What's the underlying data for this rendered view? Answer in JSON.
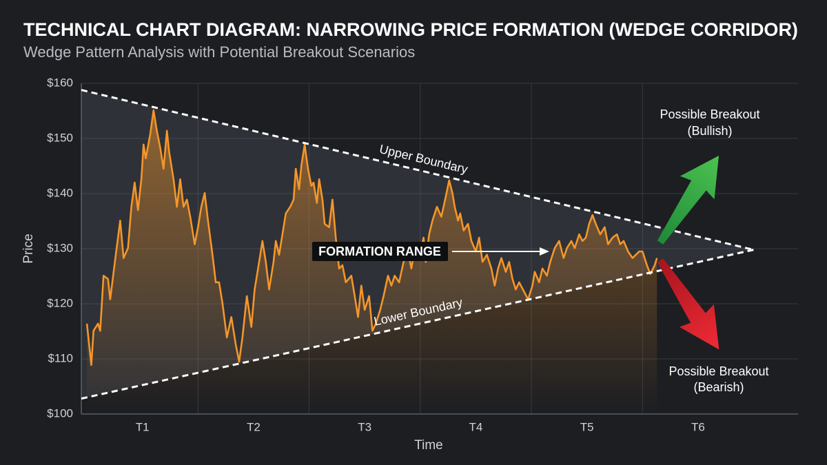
{
  "chart_data": {
    "type": "line",
    "title": "TECHNICAL CHART DIAGRAM: NARROWING PRICE FORMATION (WEDGE CORRIDOR)",
    "subtitle": "Wedge Pattern Analysis with Potential Breakout Scenarios",
    "x_label": "Time",
    "y_label": "Price",
    "xlim": [
      -0.05,
      6.4
    ],
    "ylim": [
      100,
      160
    ],
    "xticks": [
      {
        "value": 0.5,
        "label": "T1"
      },
      {
        "value": 1.5,
        "label": "T2"
      },
      {
        "value": 2.5,
        "label": "T3"
      },
      {
        "value": 3.5,
        "label": "T4"
      },
      {
        "value": 4.5,
        "label": "T5"
      },
      {
        "value": 5.5,
        "label": "T6"
      }
    ],
    "x_gridlines": [
      1,
      2,
      3,
      4,
      5
    ],
    "yticks": [
      {
        "value": 100,
        "label": "$100"
      },
      {
        "value": 110,
        "label": "$110"
      },
      {
        "value": 120,
        "label": "$120"
      },
      {
        "value": 130,
        "label": "$130"
      },
      {
        "value": 140,
        "label": "$140"
      },
      {
        "value": 150,
        "label": "$150"
      },
      {
        "value": 160,
        "label": "$160"
      }
    ],
    "grid": true,
    "series": [
      {
        "color": "#f5962a",
        "x": [
          0.0,
          0.04,
          0.06,
          0.1,
          0.12,
          0.15,
          0.19,
          0.21,
          0.26,
          0.3,
          0.33,
          0.37,
          0.4,
          0.43,
          0.46,
          0.49,
          0.51,
          0.53,
          0.57,
          0.6,
          0.63,
          0.66,
          0.69,
          0.72,
          0.74,
          0.78,
          0.81,
          0.84,
          0.87,
          0.9,
          0.93,
          0.97,
          1.0,
          1.03,
          1.06,
          1.09,
          1.13,
          1.16,
          1.19,
          1.22,
          1.26,
          1.3,
          1.34,
          1.37,
          1.4,
          1.44,
          1.48,
          1.51,
          1.55,
          1.58,
          1.61,
          1.64,
          1.68,
          1.7,
          1.73,
          1.76,
          1.79,
          1.83,
          1.86,
          1.88,
          1.91,
          1.93,
          1.96,
          1.99,
          2.02,
          2.04,
          2.07,
          2.09,
          2.12,
          2.14,
          2.18,
          2.21,
          2.24,
          2.27,
          2.3,
          2.33,
          2.38,
          2.41,
          2.44,
          2.47,
          2.5,
          2.54,
          2.57,
          2.6,
          2.64,
          2.67,
          2.71,
          2.74,
          2.77,
          2.81,
          2.85,
          2.89,
          2.92,
          2.95,
          2.99,
          3.03,
          3.05,
          3.08,
          3.11,
          3.15,
          3.19,
          3.23,
          3.26,
          3.29,
          3.31,
          3.34,
          3.36,
          3.39,
          3.43,
          3.46,
          3.5,
          3.53,
          3.56,
          3.6,
          3.64,
          3.67,
          3.7,
          3.73,
          3.77,
          3.8,
          3.83,
          3.86,
          3.89,
          3.94,
          3.97,
          4.01,
          4.03,
          4.07,
          4.1,
          4.14,
          4.17,
          4.21,
          4.25,
          4.29,
          4.32,
          4.36,
          4.39,
          4.43,
          4.46,
          4.49,
          4.52,
          4.55,
          4.58,
          4.62,
          4.66,
          4.69,
          4.73,
          4.77,
          4.8,
          4.83,
          4.87,
          4.91,
          4.94,
          4.97,
          5.0,
          5.04,
          5.07,
          5.11,
          5.13
        ],
        "values": [
          116.4,
          108.9,
          115.1,
          116.4,
          115.1,
          125.1,
          124.5,
          120.8,
          128.9,
          135.1,
          128.3,
          130.1,
          137.6,
          142.0,
          137.0,
          142.6,
          148.9,
          146.4,
          150.8,
          155.1,
          151.4,
          148.3,
          144.5,
          151.4,
          147.6,
          142.6,
          137.6,
          142.6,
          137.6,
          138.9,
          135.8,
          130.8,
          133.9,
          137.6,
          140.1,
          135.1,
          128.9,
          123.9,
          123.9,
          120.1,
          113.9,
          117.6,
          112.6,
          109.5,
          113.9,
          121.4,
          115.8,
          122.6,
          127.6,
          131.4,
          127.6,
          122.6,
          127.6,
          131.4,
          128.9,
          132.6,
          136.4,
          137.6,
          138.9,
          144.5,
          140.8,
          145.1,
          148.9,
          144.5,
          141.4,
          142.0,
          138.3,
          142.6,
          138.9,
          134.5,
          133.9,
          138.9,
          132.0,
          126.4,
          127.0,
          123.9,
          125.1,
          121.4,
          117.6,
          123.3,
          118.9,
          121.4,
          115.1,
          116.4,
          118.9,
          121.4,
          125.1,
          123.3,
          125.1,
          123.9,
          127.6,
          129.5,
          126.4,
          130.1,
          128.3,
          132.0,
          127.6,
          132.6,
          135.1,
          137.6,
          135.8,
          139.5,
          142.4,
          140.1,
          137.6,
          135.1,
          136.4,
          133.3,
          134.5,
          131.4,
          129.5,
          132.0,
          127.6,
          128.9,
          126.4,
          123.3,
          126.4,
          128.3,
          125.8,
          127.6,
          124.5,
          122.6,
          123.9,
          122.0,
          120.8,
          123.3,
          125.8,
          123.9,
          126.4,
          125.1,
          127.6,
          130.1,
          131.4,
          128.3,
          130.1,
          131.4,
          130.1,
          132.6,
          131.4,
          132.0,
          134.5,
          136.1,
          134.5,
          132.6,
          133.9,
          130.8,
          132.0,
          132.6,
          130.8,
          131.4,
          129.5,
          128.3,
          128.9,
          129.5,
          129.5,
          127.0,
          125.4,
          127.0,
          128.3
        ]
      },
      {
        "name": "Upper Boundary",
        "color": "#ffffff",
        "dashed": true,
        "x": [
          -0.05,
          6.0
        ],
        "values": [
          158.8,
          129.8
        ]
      },
      {
        "name": "Lower Boundary",
        "color": "#ffffff",
        "dashed": true,
        "x": [
          -0.05,
          6.0
        ],
        "values": [
          102.8,
          129.8
        ]
      }
    ],
    "annotations": [
      {
        "text": "FORMATION RANGE"
      },
      {
        "lines": [
          "Possible Breakout",
          "(Bullish)"
        ]
      },
      {
        "lines": [
          "Possible Breakout",
          "(Bearish)"
        ]
      }
    ]
  }
}
